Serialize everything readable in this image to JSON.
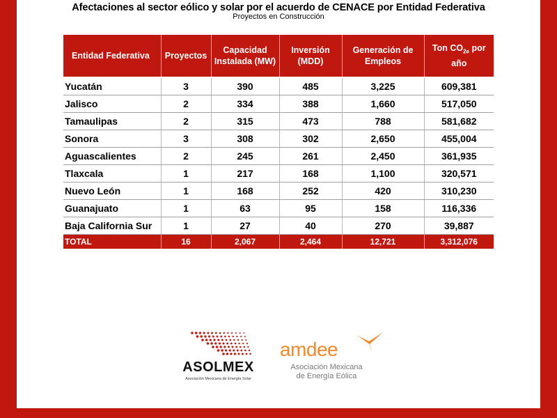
{
  "document": {
    "title": "Afectaciones al sector eólico y solar por el acuerdo de CENACE por Entidad Federativa",
    "subtitle": "Proyectos en Construcción"
  },
  "table": {
    "headers": {
      "entidad": "Entidad Federativa",
      "proyectos": "Proyectos",
      "capacidad": "Capacidad Instalada (MW)",
      "inversion": "Inversión (MDD)",
      "empleos": "Generación de Empleos",
      "co2_prefix": "Ton CO",
      "co2_sub": "2e",
      "co2_suffix": " por año"
    },
    "rows": [
      {
        "entidad": "Yucatán",
        "proyectos": "3",
        "capacidad": "390",
        "inversion": "485",
        "empleos": "3,225",
        "co2": "609,381"
      },
      {
        "entidad": "Jalisco",
        "proyectos": "2",
        "capacidad": "334",
        "inversion": "388",
        "empleos": "1,660",
        "co2": "517,050"
      },
      {
        "entidad": "Tamaulipas",
        "proyectos": "2",
        "capacidad": "315",
        "inversion": "473",
        "empleos": "788",
        "co2": "581,682"
      },
      {
        "entidad": "Sonora",
        "proyectos": "3",
        "capacidad": "308",
        "inversion": "302",
        "empleos": "2,650",
        "co2": "455,004"
      },
      {
        "entidad": "Aguascalientes",
        "proyectos": "2",
        "capacidad": "245",
        "inversion": "261",
        "empleos": "2,450",
        "co2": "361,935"
      },
      {
        "entidad": "Tlaxcala",
        "proyectos": "1",
        "capacidad": "217",
        "inversion": "168",
        "empleos": "1,100",
        "co2": "320,571"
      },
      {
        "entidad": "Nuevo León",
        "proyectos": "1",
        "capacidad": "168",
        "inversion": "252",
        "empleos": "420",
        "co2": "310,230"
      },
      {
        "entidad": "Guanajuato",
        "proyectos": "1",
        "capacidad": "63",
        "inversion": "95",
        "empleos": "158",
        "co2": "116,336"
      },
      {
        "entidad": "Baja California Sur",
        "proyectos": "1",
        "capacidad": "27",
        "inversion": "40",
        "empleos": "270",
        "co2": "39,887"
      }
    ],
    "total": {
      "entidad": "TOTAL",
      "proyectos": "16",
      "capacidad": "2,067",
      "inversion": "2,464",
      "empleos": "12,721",
      "co2": "3,312,076"
    }
  },
  "logos": {
    "asolmex": {
      "name": "ASOLMEX",
      "tagline": "Asociación Mexicana de Energía Solar",
      "icon": "solar-dots-icon",
      "color": "#c0170f"
    },
    "amdee": {
      "name": "amdee",
      "tagline_line1": "Asociación Mexicana",
      "tagline_line2": "de Energía Eólica",
      "icon": "wind-turbine-icon",
      "color": "#f08a2a"
    }
  },
  "colors": {
    "accent": "#c0170f",
    "background": "#ffffff"
  }
}
